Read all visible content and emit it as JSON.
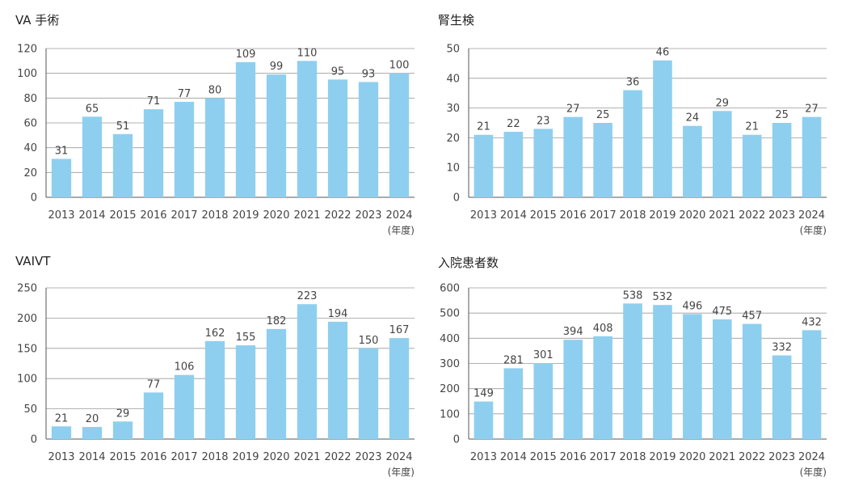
{
  "colors": {
    "bar": "#8ecfef",
    "grid": "#9a9a9a",
    "axis": "#555555",
    "text": "#444444"
  },
  "unit_label": "(年度)",
  "chart_data": [
    {
      "type": "bar",
      "title": "VA 手術",
      "categories": [
        "2013",
        "2014",
        "2015",
        "2016",
        "2017",
        "2018",
        "2019",
        "2020",
        "2021",
        "2022",
        "2023",
        "2024"
      ],
      "values": [
        31,
        65,
        51,
        71,
        77,
        80,
        109,
        99,
        110,
        95,
        93,
        100
      ],
      "ylim": [
        0,
        120
      ],
      "yticks": [
        0,
        20,
        40,
        60,
        80,
        100,
        120
      ],
      "xlabel": "(年度)",
      "ylabel": "",
      "grid": true,
      "legend": "none"
    },
    {
      "type": "bar",
      "title": "腎生検",
      "categories": [
        "2013",
        "2014",
        "2015",
        "2016",
        "2017",
        "2018",
        "2019",
        "2020",
        "2021",
        "2022",
        "2023",
        "2024"
      ],
      "values": [
        21,
        22,
        23,
        27,
        25,
        36,
        46,
        24,
        29,
        21,
        25,
        27
      ],
      "ylim": [
        0,
        50
      ],
      "yticks": [
        0,
        10,
        20,
        30,
        40,
        50
      ],
      "xlabel": "(年度)",
      "ylabel": "",
      "grid": true,
      "legend": "none"
    },
    {
      "type": "bar",
      "title": "VAIVT",
      "categories": [
        "2013",
        "2014",
        "2015",
        "2016",
        "2017",
        "2018",
        "2019",
        "2020",
        "2021",
        "2022",
        "2023",
        "2024"
      ],
      "values": [
        21,
        20,
        29,
        77,
        106,
        162,
        155,
        182,
        223,
        194,
        150,
        167
      ],
      "ylim": [
        0,
        250
      ],
      "yticks": [
        0,
        50,
        100,
        150,
        200,
        250
      ],
      "xlabel": "(年度)",
      "ylabel": "",
      "grid": true,
      "legend": "none"
    },
    {
      "type": "bar",
      "title": "入院患者数",
      "categories": [
        "2013",
        "2014",
        "2015",
        "2016",
        "2017",
        "2018",
        "2019",
        "2020",
        "2021",
        "2022",
        "2023",
        "2024"
      ],
      "values": [
        149,
        281,
        301,
        394,
        408,
        538,
        532,
        496,
        475,
        457,
        332,
        432
      ],
      "ylim": [
        0,
        600
      ],
      "yticks": [
        0,
        100,
        200,
        300,
        400,
        500,
        600
      ],
      "xlabel": "(年度)",
      "ylabel": "",
      "grid": true,
      "legend": "none"
    }
  ]
}
